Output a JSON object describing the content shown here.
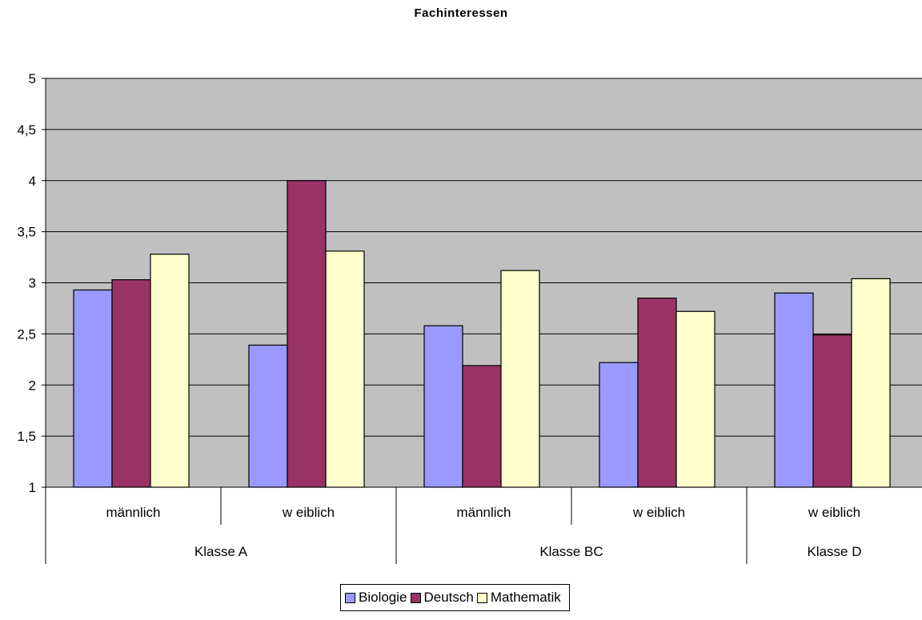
{
  "chart_data": {
    "type": "bar",
    "title": "Fachinteressen",
    "xlabel": "",
    "ylabel": "",
    "ylim": [
      1,
      5
    ],
    "yticks": [
      "1",
      "1,5",
      "2",
      "2,5",
      "3",
      "3,5",
      "4",
      "4,5",
      "5"
    ],
    "grid": true,
    "legend_position": "bottom",
    "categories": [
      {
        "label": "männlich",
        "group": "Klasse A"
      },
      {
        "label": "w eiblich",
        "group": "Klasse A"
      },
      {
        "label": "männlich",
        "group": "Klasse BC"
      },
      {
        "label": "w eiblich",
        "group": "Klasse BC"
      },
      {
        "label": "w eiblich",
        "group": "Klasse D"
      }
    ],
    "groups": [
      "Klasse A",
      "Klasse BC",
      "Klasse D"
    ],
    "series": [
      {
        "name": "Biologie",
        "color": "#9999FF",
        "values": [
          2.93,
          2.39,
          2.58,
          2.22,
          2.9
        ]
      },
      {
        "name": "Deutsch",
        "color": "#993366",
        "values": [
          3.03,
          4.0,
          2.19,
          2.85,
          2.49
        ]
      },
      {
        "name": "Mathematik",
        "color": "#FFFFCC",
        "values": [
          3.28,
          3.31,
          3.12,
          2.72,
          3.04
        ]
      }
    ],
    "plot_background": "#C0C0C0"
  }
}
